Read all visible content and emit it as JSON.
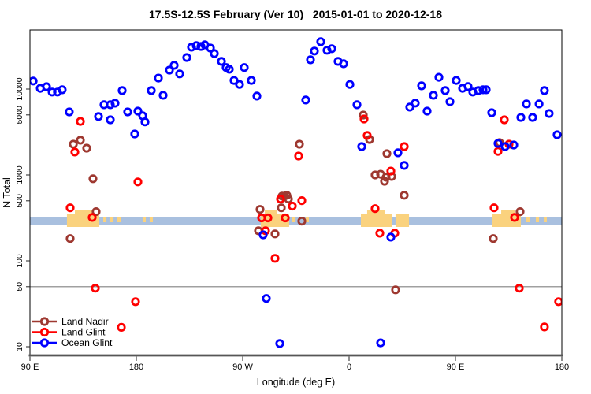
{
  "title": "17.5S-12.5S February (Ver 10)   2015-01-01 to 2020-12-18",
  "chart_data": {
    "type": "scatter",
    "title": "17.5S-12.5S February (Ver 10)   2015-01-01 to 2020-12-18",
    "xlabel": "Longitude (deg E)",
    "ylabel": "N Total",
    "x_axis": {
      "note": "longitude wraps eastward from 90E; internal coords 90..540",
      "min": 90,
      "max": 540,
      "ticks": [
        {
          "value": 90,
          "label": "90 E"
        },
        {
          "value": 180,
          "label": "180"
        },
        {
          "value": 270,
          "label": "90 W"
        },
        {
          "value": 360,
          "label": "0"
        },
        {
          "value": 450,
          "label": "90 E"
        },
        {
          "value": 540,
          "label": "180"
        }
      ]
    },
    "y_axis": {
      "scale": "log10",
      "min": 8,
      "max": 48700,
      "ticks": [
        10,
        50,
        100,
        500,
        1000,
        5000,
        10000
      ]
    },
    "reference_line_value": 50,
    "grid": false,
    "legend_position": "bottom-left",
    "legend": [
      {
        "name": "Land Nadir",
        "color": "#9E3830"
      },
      {
        "name": "Land Glint",
        "color": "#FF0000"
      },
      {
        "name": "Ocean Glint",
        "color": "#0000FF"
      }
    ],
    "map_strip": {
      "description": "latitude-band land/ocean strip drawn across plot",
      "ocean_color": "#A9C0DF",
      "land_color": "#FAD27E",
      "patches": [
        {
          "kind": "land",
          "lon": [
            121.3,
            148.7
          ]
        },
        {
          "kind": "ridge",
          "lon": [
            128.0,
            142.7
          ]
        },
        {
          "kind": "islet",
          "lon": [
            152.0,
            154.7
          ]
        },
        {
          "kind": "islet",
          "lon": [
            157.3,
            160.7
          ]
        },
        {
          "kind": "islet",
          "lon": [
            164.0,
            166.7
          ]
        },
        {
          "kind": "islet",
          "lon": [
            185.3,
            188.0
          ]
        },
        {
          "kind": "islet",
          "lon": [
            191.3,
            194.0
          ]
        },
        {
          "kind": "land",
          "lon": [
            285.3,
            309.3
          ]
        },
        {
          "kind": "ridge",
          "lon": [
            288.7,
            299.3
          ]
        },
        {
          "kind": "islet",
          "lon": [
            312.0,
            314.7
          ]
        },
        {
          "kind": "islet",
          "lon": [
            323.3,
            326.0
          ]
        },
        {
          "kind": "land",
          "lon": [
            370.0,
            396.0
          ]
        },
        {
          "kind": "ridge",
          "lon": [
            375.3,
            390.0
          ]
        },
        {
          "kind": "land",
          "lon": [
            399.3,
            410.7
          ]
        },
        {
          "kind": "land",
          "lon": [
            481.3,
            505.3
          ]
        },
        {
          "kind": "ridge",
          "lon": [
            488.7,
            500.7
          ]
        },
        {
          "kind": "islet",
          "lon": [
            510.0,
            512.7
          ]
        },
        {
          "kind": "islet",
          "lon": [
            518.0,
            520.7
          ]
        },
        {
          "kind": "islet",
          "lon": [
            524.7,
            527.3
          ]
        }
      ]
    },
    "series": [
      {
        "name": "Land Nadir",
        "color": "#9E3830",
        "marker": "open-circle",
        "points": [
          [
            126.7,
            2280
          ],
          [
            132.7,
            2540
          ],
          [
            138,
            2050
          ],
          [
            143.3,
            903
          ],
          [
            146,
            374
          ],
          [
            124,
            182
          ],
          [
            283.3,
            224
          ],
          [
            284.7,
            397
          ],
          [
            297.3,
            206
          ],
          [
            302.7,
            414
          ],
          [
            303.3,
            568
          ],
          [
            305.3,
            568
          ],
          [
            307.3,
            580
          ],
          [
            308.7,
            524
          ],
          [
            318,
            2280
          ],
          [
            320,
            290
          ],
          [
            372,
            4980
          ],
          [
            377.3,
            2590
          ],
          [
            382,
            1000
          ],
          [
            386.7,
            1020
          ],
          [
            390,
            845
          ],
          [
            391.3,
            941
          ],
          [
            396,
            961
          ],
          [
            392,
            1770
          ],
          [
            406.7,
            580
          ],
          [
            399.3,
            46
          ],
          [
            482,
            182
          ],
          [
            487.3,
            2380
          ],
          [
            504.7,
            374
          ]
        ]
      },
      {
        "name": "Land Glint",
        "color": "#FF0000",
        "marker": "open-circle",
        "points": [
          [
            132.7,
            4200
          ],
          [
            128,
            1850
          ],
          [
            124,
            414
          ],
          [
            142.7,
            320
          ],
          [
            145.3,
            48
          ],
          [
            179.3,
            33.5
          ],
          [
            167.3,
            16.8
          ],
          [
            181.3,
            830
          ],
          [
            286,
            316
          ],
          [
            289.3,
            224
          ],
          [
            291.3,
            316
          ],
          [
            297.3,
            107
          ],
          [
            302,
            524
          ],
          [
            306,
            316
          ],
          [
            312,
            434
          ],
          [
            317.3,
            1660
          ],
          [
            320,
            502
          ],
          [
            372.7,
            4480
          ],
          [
            375.3,
            2880
          ],
          [
            382,
            406
          ],
          [
            386,
            210
          ],
          [
            395.3,
            1110
          ],
          [
            398.7,
            210
          ],
          [
            406.7,
            2140
          ],
          [
            482.7,
            414
          ],
          [
            486,
            1880
          ],
          [
            491.3,
            4390
          ],
          [
            495.3,
            2280
          ],
          [
            500,
            320
          ],
          [
            504,
            48
          ],
          [
            525.3,
            17
          ],
          [
            537.3,
            33.5
          ]
        ]
      },
      {
        "name": "Ocean Glint",
        "color": "#0000FF",
        "marker": "open-circle",
        "points": [
          [
            92.7,
            12400
          ],
          [
            98.7,
            10200
          ],
          [
            104,
            10650
          ],
          [
            108.7,
            9220
          ],
          [
            113.3,
            9220
          ],
          [
            117.3,
            9810
          ],
          [
            123.3,
            5420
          ],
          [
            148,
            4790
          ],
          [
            152.7,
            6570
          ],
          [
            158,
            6570
          ],
          [
            158,
            4390
          ],
          [
            162,
            6850
          ],
          [
            168,
            9600
          ],
          [
            172.7,
            5420
          ],
          [
            178.7,
            3000
          ],
          [
            181.3,
            5540
          ],
          [
            185.3,
            4890
          ],
          [
            187.3,
            4140
          ],
          [
            192.7,
            9600
          ],
          [
            198.7,
            13400
          ],
          [
            202.7,
            8470
          ],
          [
            208,
            16600
          ],
          [
            212,
            18900
          ],
          [
            216.7,
            15000
          ],
          [
            222.7,
            23300
          ],
          [
            226.7,
            30700
          ],
          [
            230.7,
            32000
          ],
          [
            234.7,
            31300
          ],
          [
            238,
            32700
          ],
          [
            242.7,
            30000
          ],
          [
            246,
            25900
          ],
          [
            252,
            21000
          ],
          [
            256,
            17800
          ],
          [
            258.7,
            17000
          ],
          [
            262.7,
            12600
          ],
          [
            267.3,
            11300
          ],
          [
            271.3,
            17800
          ],
          [
            277.3,
            12600
          ],
          [
            282,
            8280
          ],
          [
            287.3,
            201
          ],
          [
            290,
            36.5
          ],
          [
            301.3,
            10.9
          ],
          [
            323.3,
            7460
          ],
          [
            327.3,
            21900
          ],
          [
            330.7,
            27700
          ],
          [
            336,
            35600
          ],
          [
            341.3,
            28300
          ],
          [
            345.3,
            29500
          ],
          [
            350.7,
            21000
          ],
          [
            355.3,
            19700
          ],
          [
            360.7,
            11300
          ],
          [
            366.7,
            6570
          ],
          [
            370.7,
            2140
          ],
          [
            386.7,
            11.1
          ],
          [
            395.3,
            189
          ],
          [
            401.3,
            1810
          ],
          [
            406.7,
            1290
          ],
          [
            411.3,
            6160
          ],
          [
            416,
            6860
          ],
          [
            421.3,
            10900
          ],
          [
            426,
            5540
          ],
          [
            431.3,
            8470
          ],
          [
            436,
            13700
          ],
          [
            441.3,
            9600
          ],
          [
            445.3,
            7130
          ],
          [
            450.7,
            12600
          ],
          [
            456,
            10200
          ],
          [
            460.7,
            10700
          ],
          [
            464.7,
            9220
          ],
          [
            469.3,
            9600
          ],
          [
            473.3,
            9810
          ],
          [
            476,
            9810
          ],
          [
            480.7,
            5310
          ],
          [
            486,
            2330
          ],
          [
            492,
            2140
          ],
          [
            499.3,
            2230
          ],
          [
            505.3,
            4670
          ],
          [
            510,
            6710
          ],
          [
            515.3,
            4670
          ],
          [
            520.7,
            6710
          ],
          [
            525.3,
            9600
          ],
          [
            529.3,
            5190
          ],
          [
            536,
            2940
          ]
        ]
      }
    ]
  },
  "colors": {
    "axis_box": "#000000",
    "bottom_axis": "#565656",
    "reference_line": "#808080",
    "tick_text": "#000000"
  }
}
